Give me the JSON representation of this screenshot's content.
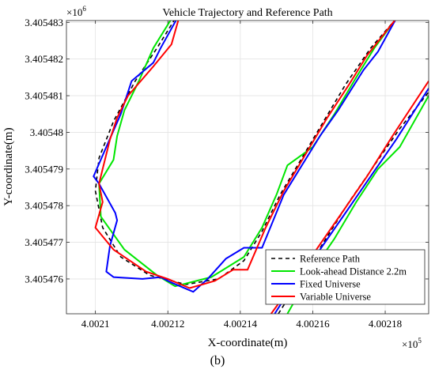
{
  "caption": "(b)",
  "chart_data": {
    "type": "line",
    "title": "Vehicle Trajectory and Reference Path",
    "xlabel": "X-coordinate(m)",
    "ylabel": "Y-coordinate(m)",
    "x_exponent_label": "×10",
    "x_exponent_power": "5",
    "y_exponent_label": "×10",
    "y_exponent_power": "6",
    "xlim": [
      400209.2,
      400219.2
    ],
    "ylim": [
      3405475.05,
      3405483.05
    ],
    "x_ticks": [
      400210,
      400212,
      400214,
      400216,
      400218
    ],
    "x_tick_labels": [
      "4.0021",
      "4.00212",
      "4.00214",
      "4.00216",
      "4.00218"
    ],
    "y_ticks": [
      3405476,
      3405477,
      3405478,
      3405479,
      3405480,
      3405481,
      3405482,
      3405483
    ],
    "y_tick_labels": [
      "3.405476",
      "3.405477",
      "3.405478",
      "3.405479",
      "3.40548",
      "3.405481",
      "3.405482",
      "3.405483"
    ],
    "grid": true,
    "legend_position": "bottom-right",
    "series": [
      {
        "name": "Reference Path",
        "color": "#000000",
        "dash": "dashed",
        "segments": [
          [
            [
              400212.2,
              3405483.1
            ],
            [
              400211.7,
              3405482.3
            ],
            [
              400211.1,
              3405481.4
            ],
            [
              400210.5,
              3405480.3
            ],
            [
              400210.1,
              3405479.3
            ],
            [
              400210.0,
              3405478.4
            ],
            [
              400210.2,
              3405477.4
            ],
            [
              400210.7,
              3405476.6
            ],
            [
              400211.5,
              3405476.1
            ],
            [
              400212.5,
              3405475.85
            ],
            [
              400213.4,
              3405476.0
            ],
            [
              400214.1,
              3405476.5
            ],
            [
              400214.6,
              3405477.3
            ],
            [
              400215.1,
              3405478.3
            ],
            [
              400215.7,
              3405479.3
            ],
            [
              400216.3,
              3405480.3
            ],
            [
              400216.9,
              3405481.3
            ],
            [
              400217.6,
              3405482.3
            ],
            [
              400218.3,
              3405483.1
            ]
          ],
          [
            [
              400215.05,
              3405475.05
            ],
            [
              400215.6,
              3405475.9
            ],
            [
              400216.3,
              3405477.0
            ],
            [
              400217.0,
              3405478.1
            ],
            [
              400217.7,
              3405479.1
            ],
            [
              400218.4,
              3405480.1
            ],
            [
              400219.2,
              3405481.1
            ]
          ]
        ]
      },
      {
        "name": "Look-ahead Distance 2.2m",
        "color": "#00e600",
        "dash": "solid",
        "segments": [
          [
            [
              400212.1,
              3405483.1
            ],
            [
              400211.6,
              3405482.3
            ],
            [
              400211.2,
              3405481.4
            ],
            [
              400210.8,
              3405480.6
            ],
            [
              400210.6,
              3405479.9
            ],
            [
              400210.5,
              3405479.25
            ],
            [
              400210.1,
              3405478.6
            ],
            [
              400210.15,
              3405477.7
            ],
            [
              400210.8,
              3405476.8
            ],
            [
              400211.7,
              3405476.1
            ],
            [
              400212.2,
              3405475.8
            ],
            [
              400213.2,
              3405476.05
            ],
            [
              400214.1,
              3405476.6
            ],
            [
              400214.6,
              3405477.4
            ],
            [
              400215.0,
              3405478.3
            ],
            [
              400215.3,
              3405479.1
            ],
            [
              400216.0,
              3405479.6
            ],
            [
              400216.6,
              3405480.5
            ],
            [
              400217.2,
              3405481.5
            ],
            [
              400217.7,
              3405482.3
            ],
            [
              400218.3,
              3405483.1
            ]
          ],
          [
            [
              400215.3,
              3405475.05
            ],
            [
              400215.9,
              3405476.1
            ],
            [
              400216.6,
              3405477.1
            ],
            [
              400217.2,
              3405478.1
            ],
            [
              400217.8,
              3405479.0
            ],
            [
              400218.4,
              3405479.6
            ],
            [
              400219.2,
              3405481.0
            ]
          ]
        ]
      },
      {
        "name": "Fixed Universe",
        "color": "#0000ff",
        "dash": "solid",
        "segments": [
          [
            [
              400212.25,
              3405483.1
            ],
            [
              400211.8,
              3405482.3
            ],
            [
              400211.6,
              3405481.9
            ],
            [
              400211.0,
              3405481.4
            ],
            [
              400210.7,
              3405480.5
            ],
            [
              400210.3,
              3405479.6
            ],
            [
              400209.95,
              3405478.8
            ],
            [
              400210.1,
              3405478.6
            ],
            [
              400210.55,
              3405477.8
            ],
            [
              400210.6,
              3405477.6
            ],
            [
              400210.4,
              3405476.9
            ],
            [
              400210.3,
              3405476.2
            ],
            [
              400210.5,
              3405476.05
            ],
            [
              400211.3,
              3405476.0
            ],
            [
              400211.8,
              3405476.05
            ],
            [
              400212.1,
              3405475.9
            ],
            [
              400212.7,
              3405475.65
            ],
            [
              400213.1,
              3405476.0
            ],
            [
              400213.6,
              3405476.55
            ],
            [
              400214.1,
              3405476.85
            ],
            [
              400214.6,
              3405476.85
            ],
            [
              400215.2,
              3405478.3
            ],
            [
              400215.7,
              3405479.1
            ],
            [
              400216.2,
              3405479.9
            ],
            [
              400216.7,
              3405480.6
            ],
            [
              400217.4,
              3405481.7
            ],
            [
              400217.8,
              3405482.2
            ],
            [
              400218.3,
              3405483.1
            ]
          ],
          [
            [
              400214.95,
              3405475.05
            ],
            [
              400215.5,
              3405475.9
            ],
            [
              400216.2,
              3405476.8
            ],
            [
              400216.9,
              3405477.8
            ],
            [
              400217.6,
              3405478.8
            ],
            [
              400218.3,
              3405479.8
            ],
            [
              400219.2,
              3405481.2
            ]
          ]
        ]
      },
      {
        "name": "Variable Universe",
        "color": "#ff0000",
        "dash": "solid",
        "segments": [
          [
            [
              400212.3,
              3405483.1
            ],
            [
              400212.1,
              3405482.4
            ],
            [
              400211.6,
              3405481.8
            ],
            [
              400210.9,
              3405481.0
            ],
            [
              400210.6,
              3405480.4
            ],
            [
              400210.4,
              3405479.8
            ],
            [
              400210.2,
              3405479.0
            ],
            [
              400210.1,
              3405478.6
            ],
            [
              400210.2,
              3405478.1
            ],
            [
              400210.0,
              3405477.4
            ],
            [
              400210.5,
              3405476.8
            ],
            [
              400211.4,
              3405476.2
            ],
            [
              400212.0,
              3405476.0
            ],
            [
              400212.6,
              3405475.75
            ],
            [
              400213.3,
              3405475.95
            ],
            [
              400213.8,
              3405476.25
            ],
            [
              400214.2,
              3405476.25
            ],
            [
              400214.7,
              3405477.4
            ],
            [
              400215.2,
              3405478.4
            ],
            [
              400215.8,
              3405479.4
            ],
            [
              400216.4,
              3405480.4
            ],
            [
              400217.0,
              3405481.3
            ],
            [
              400217.5,
              3405482.1
            ],
            [
              400218.3,
              3405483.1
            ]
          ],
          [
            [
              400214.85,
              3405475.05
            ],
            [
              400215.4,
              3405475.8
            ],
            [
              400216.1,
              3405476.8
            ],
            [
              400216.8,
              3405477.8
            ],
            [
              400217.5,
              3405478.8
            ],
            [
              400218.2,
              3405479.9
            ],
            [
              400219.2,
              3405481.4
            ]
          ]
        ]
      }
    ]
  }
}
